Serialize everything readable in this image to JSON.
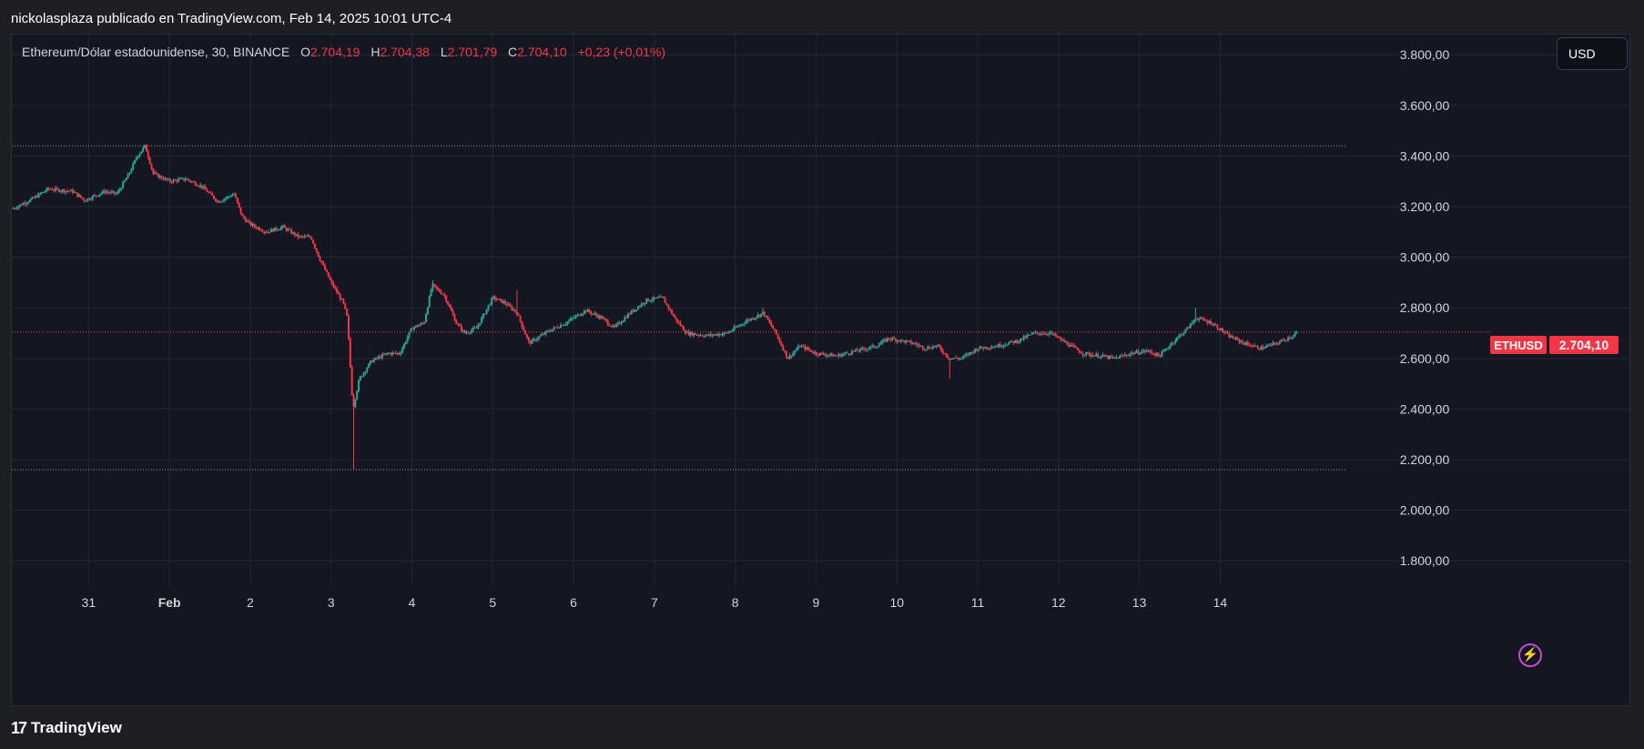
{
  "header": {
    "publish_text": "nickolasplaza publicado en TradingView.com, Feb 14, 2025 10:01 UTC-4"
  },
  "legend": {
    "symbol": "Ethereum/Dólar estadounidense, 30, BINANCE",
    "o_label": "O",
    "o_value": "2.704,19",
    "h_label": "H",
    "h_value": "2.704,38",
    "l_label": "L",
    "l_value": "2.701,79",
    "c_label": "C",
    "c_value": "2.704,10",
    "change": "+0,23 (+0,01%)"
  },
  "currency_button": "USD",
  "price_tag": {
    "symbol": "ETHUSD",
    "value": "2.704,10"
  },
  "footer": {
    "brand": "TradingView",
    "logo_glyph": "17"
  },
  "colors": {
    "background": "#141722",
    "grid": "#242733",
    "up": "#26a69a",
    "down": "#f23645",
    "price_tag": "#f23645",
    "axis_text": "#d1d4dc"
  },
  "chart_data": {
    "type": "candlestick",
    "symbol": "ETHUSD",
    "interval": "30",
    "exchange": "BINANCE",
    "ylim": [
      1700,
      3880
    ],
    "y_ticks": [
      "3.800,00",
      "3.600,00",
      "3.400,00",
      "3.200,00",
      "3.000,00",
      "2.800,00",
      "2.600,00",
      "2.400,00",
      "2.200,00",
      "2.000,00",
      "1.800,00"
    ],
    "y_tick_values": [
      3800,
      3600,
      3400,
      3200,
      3000,
      2800,
      2600,
      2400,
      2200,
      2000,
      1800
    ],
    "x_ticks": [
      "31",
      "Feb",
      "2",
      "3",
      "4",
      "5",
      "6",
      "7",
      "8",
      "9",
      "10",
      "11",
      "12",
      "13",
      "14"
    ],
    "x_tick_days": [
      -0.9,
      0.1,
      1.1,
      2.1,
      3.1,
      4.1,
      5.1,
      6.1,
      7.1,
      8.1,
      9.1,
      10.1,
      11.1,
      12.1,
      13.1
    ],
    "xlim_days": [
      -1.85,
      14.65
    ],
    "reference_lines": [
      3440,
      2704.1,
      2160
    ],
    "last_price": 2704.1,
    "price_path": [
      {
        "d": -1.85,
        "p": 3190
      },
      {
        "d": -1.6,
        "p": 3230
      },
      {
        "d": -1.4,
        "p": 3270
      },
      {
        "d": -1.1,
        "p": 3260
      },
      {
        "d": -0.95,
        "p": 3225
      },
      {
        "d": -0.7,
        "p": 3260
      },
      {
        "d": -0.55,
        "p": 3250
      },
      {
        "d": -0.4,
        "p": 3330
      },
      {
        "d": -0.3,
        "p": 3400
      },
      {
        "d": -0.2,
        "p": 3440
      },
      {
        "d": -0.1,
        "p": 3330
      },
      {
        "d": 0.1,
        "p": 3300
      },
      {
        "d": 0.3,
        "p": 3310
      },
      {
        "d": 0.5,
        "p": 3280
      },
      {
        "d": 0.7,
        "p": 3220
      },
      {
        "d": 0.9,
        "p": 3250
      },
      {
        "d": 1.0,
        "p": 3160
      },
      {
        "d": 1.1,
        "p": 3130
      },
      {
        "d": 1.3,
        "p": 3100
      },
      {
        "d": 1.5,
        "p": 3120
      },
      {
        "d": 1.7,
        "p": 3080
      },
      {
        "d": 1.85,
        "p": 3080
      },
      {
        "d": 1.95,
        "p": 3000
      },
      {
        "d": 2.1,
        "p": 2900
      },
      {
        "d": 2.25,
        "p": 2820
      },
      {
        "d": 2.3,
        "p": 2760
      },
      {
        "d": 2.37,
        "p": 2400
      },
      {
        "d": 2.45,
        "p": 2520
      },
      {
        "d": 2.6,
        "p": 2590
      },
      {
        "d": 2.8,
        "p": 2620
      },
      {
        "d": 2.95,
        "p": 2620
      },
      {
        "d": 3.1,
        "p": 2720
      },
      {
        "d": 3.25,
        "p": 2740
      },
      {
        "d": 3.35,
        "p": 2890
      },
      {
        "d": 3.5,
        "p": 2850
      },
      {
        "d": 3.65,
        "p": 2740
      },
      {
        "d": 3.75,
        "p": 2700
      },
      {
        "d": 3.9,
        "p": 2720
      },
      {
        "d": 4.1,
        "p": 2840
      },
      {
        "d": 4.25,
        "p": 2820
      },
      {
        "d": 4.4,
        "p": 2780
      },
      {
        "d": 4.55,
        "p": 2660
      },
      {
        "d": 4.8,
        "p": 2710
      },
      {
        "d": 5.0,
        "p": 2740
      },
      {
        "d": 5.25,
        "p": 2790
      },
      {
        "d": 5.45,
        "p": 2760
      },
      {
        "d": 5.6,
        "p": 2720
      },
      {
        "d": 5.8,
        "p": 2780
      },
      {
        "d": 6.0,
        "p": 2830
      },
      {
        "d": 6.2,
        "p": 2840
      },
      {
        "d": 6.35,
        "p": 2760
      },
      {
        "d": 6.5,
        "p": 2700
      },
      {
        "d": 6.75,
        "p": 2690
      },
      {
        "d": 7.0,
        "p": 2700
      },
      {
        "d": 7.25,
        "p": 2750
      },
      {
        "d": 7.45,
        "p": 2780
      },
      {
        "d": 7.6,
        "p": 2700
      },
      {
        "d": 7.75,
        "p": 2600
      },
      {
        "d": 7.9,
        "p": 2650
      },
      {
        "d": 8.1,
        "p": 2620
      },
      {
        "d": 8.35,
        "p": 2610
      },
      {
        "d": 8.6,
        "p": 2630
      },
      {
        "d": 8.85,
        "p": 2650
      },
      {
        "d": 9.0,
        "p": 2680
      },
      {
        "d": 9.3,
        "p": 2660
      },
      {
        "d": 9.45,
        "p": 2640
      },
      {
        "d": 9.6,
        "p": 2650
      },
      {
        "d": 9.75,
        "p": 2600
      },
      {
        "d": 9.9,
        "p": 2600
      },
      {
        "d": 10.1,
        "p": 2640
      },
      {
        "d": 10.35,
        "p": 2650
      },
      {
        "d": 10.6,
        "p": 2670
      },
      {
        "d": 10.8,
        "p": 2700
      },
      {
        "d": 11.0,
        "p": 2700
      },
      {
        "d": 11.2,
        "p": 2660
      },
      {
        "d": 11.4,
        "p": 2620
      },
      {
        "d": 11.6,
        "p": 2610
      },
      {
        "d": 11.8,
        "p": 2600
      },
      {
        "d": 12.0,
        "p": 2620
      },
      {
        "d": 12.2,
        "p": 2630
      },
      {
        "d": 12.35,
        "p": 2610
      },
      {
        "d": 12.5,
        "p": 2660
      },
      {
        "d": 12.7,
        "p": 2720
      },
      {
        "d": 12.8,
        "p": 2760
      },
      {
        "d": 13.0,
        "p": 2740
      },
      {
        "d": 13.2,
        "p": 2690
      },
      {
        "d": 13.4,
        "p": 2660
      },
      {
        "d": 13.6,
        "p": 2640
      },
      {
        "d": 13.8,
        "p": 2660
      },
      {
        "d": 14.0,
        "p": 2690
      },
      {
        "d": 14.05,
        "p": 2704.1
      }
    ],
    "spikes": [
      {
        "d": -0.2,
        "high": 3445
      },
      {
        "d": 2.37,
        "low": 2160
      },
      {
        "d": 3.35,
        "high": 2910
      },
      {
        "d": 4.4,
        "high": 2870
      },
      {
        "d": 7.45,
        "high": 2800
      },
      {
        "d": 9.75,
        "low": 2520
      },
      {
        "d": 12.8,
        "high": 2800
      }
    ]
  }
}
